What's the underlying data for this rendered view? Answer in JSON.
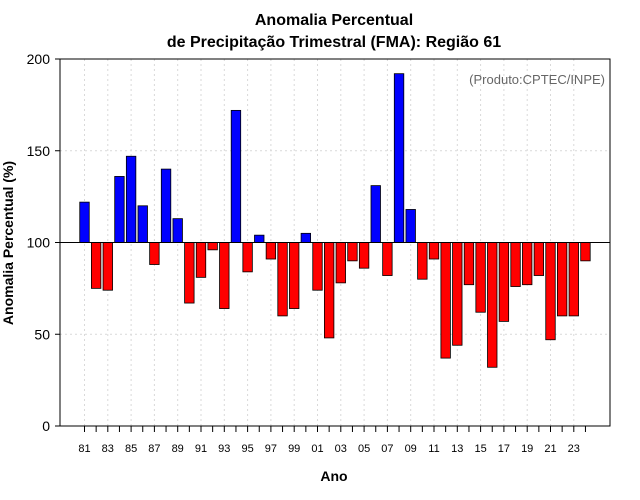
{
  "chart_data": {
    "type": "bar",
    "title": "Anomalia Percentual",
    "subtitle": "de Precipitação Trimestral (FMA): Região 61",
    "xlabel": "Ano",
    "ylabel": "Anomalia Percentual (%)",
    "annotation": "(Produto:CPTEC/INPE)",
    "baseline": 100,
    "ylim": [
      0,
      200
    ],
    "yticks": [
      0,
      50,
      100,
      150,
      200
    ],
    "grid": true,
    "colors": {
      "above": "#0000ff",
      "below": "#ff0000"
    },
    "xtick_labels": [
      "81",
      "83",
      "85",
      "87",
      "89",
      "91",
      "93",
      "95",
      "97",
      "99",
      "01",
      "03",
      "05",
      "07",
      "09",
      "11",
      "13",
      "15",
      "17",
      "19",
      "21",
      "23"
    ],
    "categories": [
      "81",
      "82",
      "83",
      "84",
      "85",
      "86",
      "87",
      "88",
      "89",
      "90",
      "91",
      "92",
      "93",
      "94",
      "95",
      "96",
      "97",
      "98",
      "99",
      "00",
      "01",
      "02",
      "03",
      "04",
      "05",
      "06",
      "07",
      "08",
      "09",
      "10",
      "11",
      "12",
      "13",
      "14",
      "15",
      "16",
      "17",
      "18",
      "19",
      "20",
      "21",
      "22",
      "23",
      "24"
    ],
    "values": [
      122,
      75,
      74,
      136,
      147,
      120,
      88,
      140,
      113,
      67,
      81,
      96,
      64,
      172,
      84,
      104,
      91,
      60,
      64,
      105,
      74,
      48,
      78,
      90,
      86,
      131,
      82,
      192,
      118,
      80,
      91,
      37,
      44,
      77,
      62,
      32,
      57,
      76,
      77,
      82,
      47,
      60,
      60,
      90
    ]
  }
}
